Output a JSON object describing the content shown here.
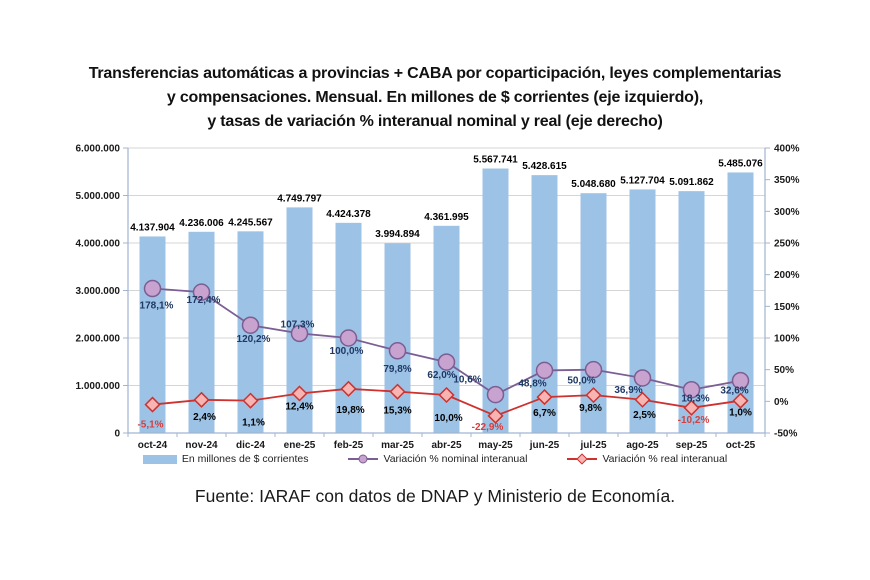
{
  "title": {
    "lines": [
      "Transferencias automáticas a provincias + CABA por coparticipación, leyes complementarias",
      "y compensaciones. Mensual. En millones de $ corrientes (eje izquierdo),",
      "y tasas de variación % interanual nominal y real (eje derecho)"
    ]
  },
  "footer": {
    "source": "Fuente: IARAF con datos de DNAP y Ministerio de Economía."
  },
  "colors": {
    "bar_fill": "#9CC2E5",
    "nominal_line": "#7B5E93",
    "nominal_marker_fill": "#C9A3CF",
    "real_line": "#CE312E",
    "real_marker_fill": "#F6B5B2",
    "nominal_label": "#1F3864",
    "real_label_positive": "#000000",
    "real_label_negative": "#D43F3F",
    "grid": "#D5D5D5",
    "axis": "#A0B5D2",
    "text": "#1A1A1A"
  },
  "chart_data": {
    "type": "combo-bar-line",
    "title": "Transferencias automáticas a provincias + CABA por coparticipación, leyes complementarias y compensaciones. Mensual. En millones de $ corrientes (eje izquierdo), y tasas de variación % interanual nominal y real (eje derecho)",
    "categories": [
      "oct-24",
      "nov-24",
      "dic-24",
      "ene-25",
      "feb-25",
      "mar-25",
      "abr-25",
      "may-25",
      "jun-25",
      "jul-25",
      "ago-25",
      "sep-25",
      "oct-25"
    ],
    "series": [
      {
        "name": "En millones de $ corrientes",
        "type": "bar",
        "axis": "left",
        "values": [
          4137904,
          4236006,
          4245567,
          4749797,
          4424378,
          3994894,
          4361995,
          5567741,
          5428615,
          5048680,
          5127704,
          5091862,
          5485076
        ],
        "labels": [
          "4.137.904",
          "4.236.006",
          "4.245.567",
          "4.749.797",
          "4.424.378",
          "3.994.894",
          "4.361.995",
          "5.567.741",
          "5.428.615",
          "5.048.680",
          "5.127.704",
          "5.091.862",
          "5.485.076"
        ]
      },
      {
        "name": "Variación % nominal interanual",
        "type": "line",
        "marker": "circle",
        "axis": "right",
        "values": [
          178.1,
          172.4,
          120.2,
          107.3,
          100.0,
          79.8,
          62.0,
          10.6,
          48.8,
          50.0,
          36.9,
          18.3,
          32.6
        ],
        "labels": [
          "178,1%",
          "172,4%",
          "120,2%",
          "107,3%",
          "100,0%",
          "79,8%",
          "62,0%",
          "10,6%",
          "48,8%",
          "50,0%",
          "36,9%",
          "18,3%",
          "32,6%"
        ]
      },
      {
        "name": "Variación % real interanual",
        "type": "line",
        "marker": "diamond",
        "axis": "right",
        "values": [
          -5.1,
          2.4,
          1.1,
          12.4,
          19.8,
          15.3,
          10.0,
          -22.9,
          6.7,
          9.8,
          2.5,
          -10.2,
          1.0
        ],
        "labels": [
          "-5,1%",
          "2,4%",
          "1,1%",
          "12,4%",
          "19,8%",
          "15,3%",
          "10,0%",
          "-22,9%",
          "6,7%",
          "9,8%",
          "2,5%",
          "-10,2%",
          "1,0%"
        ]
      }
    ],
    "left_axis": {
      "min": 0,
      "max": 6000000,
      "tick_step": 1000000,
      "tick_labels": [
        "0",
        "1.000.000",
        "2.000.000",
        "3.000.000",
        "4.000.000",
        "5.000.000",
        "6.000.000"
      ]
    },
    "right_axis": {
      "min": -50,
      "max": 400,
      "tick_step": 50,
      "tick_labels": [
        "-50%",
        "0%",
        "50%",
        "100%",
        "150%",
        "200%",
        "250%",
        "300%",
        "350%",
        "400%"
      ]
    },
    "grid": true,
    "legend_position": "bottom"
  }
}
